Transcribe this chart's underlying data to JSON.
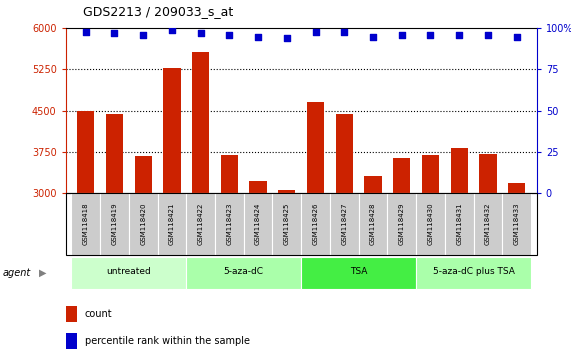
{
  "title": "GDS2213 / 209033_s_at",
  "samples": [
    "GSM118418",
    "GSM118419",
    "GSM118420",
    "GSM118421",
    "GSM118422",
    "GSM118423",
    "GSM118424",
    "GSM118425",
    "GSM118426",
    "GSM118427",
    "GSM118428",
    "GSM118429",
    "GSM118430",
    "GSM118431",
    "GSM118432",
    "GSM118433"
  ],
  "counts": [
    4500,
    4430,
    3680,
    5280,
    5570,
    3700,
    3210,
    3060,
    4660,
    4430,
    3310,
    3630,
    3700,
    3820,
    3710,
    3190
  ],
  "percentile": [
    98,
    97,
    96,
    99,
    97,
    96,
    95,
    94,
    98,
    98,
    95,
    96,
    96,
    96,
    96,
    95
  ],
  "bar_color": "#cc2200",
  "dot_color": "#0000cc",
  "ylim_left": [
    3000,
    6000
  ],
  "ylim_right": [
    0,
    100
  ],
  "yticks_left": [
    3000,
    3750,
    4500,
    5250,
    6000
  ],
  "yticks_right": [
    0,
    25,
    50,
    75,
    100
  ],
  "groups": [
    {
      "label": "untreated",
      "start": 0,
      "end": 4,
      "color": "#ccffcc"
    },
    {
      "label": "5-aza-dC",
      "start": 4,
      "end": 8,
      "color": "#aaffaa"
    },
    {
      "label": "TSA",
      "start": 8,
      "end": 12,
      "color": "#44ee44"
    },
    {
      "label": "5-aza-dC plus TSA",
      "start": 12,
      "end": 16,
      "color": "#aaffaa"
    }
  ],
  "agent_label": "agent",
  "legend_count_label": "count",
  "legend_pct_label": "percentile rank within the sample",
  "bg_color": "#ffffff",
  "plot_bg_color": "#ffffff",
  "tick_area_color": "#cccccc",
  "dotted_line_color": "#000000",
  "left_axis_color": "#cc2200",
  "right_axis_color": "#0000cc",
  "border_color": "#000000"
}
